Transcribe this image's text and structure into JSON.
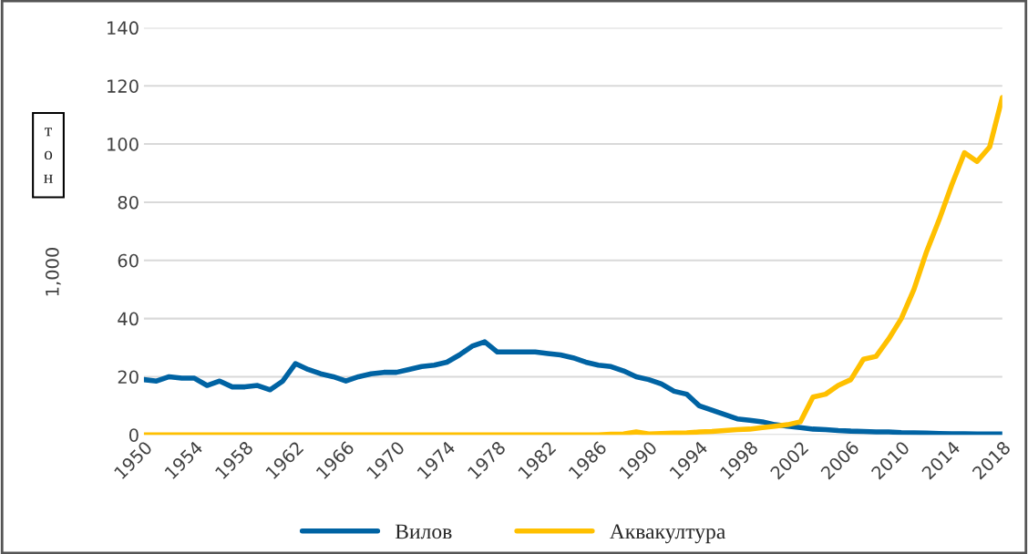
{
  "chart_data": {
    "type": "line",
    "ylabel": "1,000",
    "annotations": [
      "тон"
    ],
    "x": [
      1950,
      1951,
      1952,
      1953,
      1954,
      1955,
      1956,
      1957,
      1958,
      1959,
      1960,
      1961,
      1962,
      1963,
      1964,
      1965,
      1966,
      1967,
      1968,
      1969,
      1970,
      1971,
      1972,
      1973,
      1974,
      1975,
      1976,
      1977,
      1978,
      1979,
      1980,
      1981,
      1982,
      1983,
      1984,
      1985,
      1986,
      1987,
      1988,
      1989,
      1990,
      1991,
      1992,
      1993,
      1994,
      1995,
      1996,
      1997,
      1998,
      1999,
      2000,
      2001,
      2002,
      2003,
      2004,
      2005,
      2006,
      2007,
      2008,
      2009,
      2010,
      2011,
      2012,
      2013,
      2014,
      2015,
      2016,
      2017,
      2018
    ],
    "series": [
      {
        "name": "Вилов",
        "color": "#0063a3",
        "values": [
          19,
          18.5,
          20,
          19.5,
          19.5,
          17,
          18.5,
          16.5,
          16.5,
          17,
          15.5,
          18.5,
          24.5,
          22.5,
          21,
          20,
          18.5,
          20,
          21,
          21.5,
          21.5,
          22.5,
          23.5,
          24,
          25,
          27.5,
          30.5,
          32,
          28.5,
          28.5,
          28.5,
          28.5,
          28,
          27.5,
          26.5,
          25,
          24,
          23.5,
          22,
          20,
          19,
          17.5,
          15,
          14,
          10,
          8.5,
          7,
          5.5,
          5,
          4.5,
          3.5,
          3,
          2.5,
          2,
          1.8,
          1.5,
          1.3,
          1.2,
          1,
          1,
          0.8,
          0.7,
          0.6,
          0.5,
          0.4,
          0.4,
          0.3,
          0.3,
          0.3
        ]
      },
      {
        "name": "Аквакултура",
        "color": "#ffc000",
        "values": [
          0,
          0,
          0,
          0,
          0,
          0,
          0,
          0,
          0,
          0,
          0,
          0,
          0,
          0,
          0,
          0,
          0,
          0,
          0,
          0,
          0,
          0,
          0,
          0,
          0,
          0,
          0,
          0,
          0,
          0,
          0,
          0,
          0,
          0,
          0,
          0,
          0,
          0.2,
          0.3,
          1,
          0.3,
          0.5,
          0.6,
          0.7,
          1,
          1.2,
          1.5,
          1.8,
          2,
          2.5,
          3,
          3.5,
          4.5,
          13,
          14,
          17,
          19,
          26,
          27,
          33,
          40,
          50,
          63,
          74,
          86,
          97,
          94,
          99,
          116
        ]
      }
    ],
    "xlim": [
      1950,
      2018
    ],
    "xticks": [
      1950,
      1954,
      1958,
      1962,
      1966,
      1970,
      1974,
      1978,
      1982,
      1986,
      1990,
      1994,
      1998,
      2002,
      2006,
      2010,
      2014,
      2018
    ],
    "ylim": [
      0,
      140
    ],
    "yticks": [
      0,
      20,
      40,
      60,
      80,
      100,
      120,
      140
    ],
    "grid": "y",
    "legend": "bottom",
    "line_style": "solid",
    "marker": "none"
  }
}
